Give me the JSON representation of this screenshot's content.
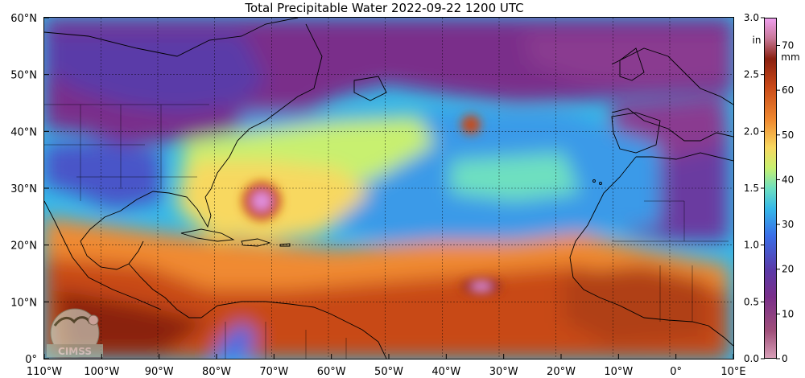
{
  "title": "Total Precipitable Water  2022-09-22 1200 UTC",
  "map": {
    "lon_ticks": [
      "110°W",
      "100°W",
      "90°W",
      "80°W",
      "70°W",
      "60°W",
      "50°W",
      "40°W",
      "30°W",
      "20°W",
      "10°W",
      "0°",
      "10°E"
    ],
    "lat_ticks": [
      "60°N",
      "50°N",
      "40°N",
      "30°N",
      "20°N",
      "10°N",
      "0°"
    ],
    "lon_range": [
      -110,
      10
    ],
    "lat_range": [
      0,
      60
    ],
    "gridlines": true,
    "logo_text": "CIMSS"
  },
  "colorbar": {
    "unit_in": "in",
    "unit_mm": "mm",
    "in_ticks": [
      "3.0",
      "2.5",
      "2.0",
      "1.5",
      "1.0",
      "0.5",
      "0.0"
    ],
    "in_values": [
      3.0,
      2.5,
      2.0,
      1.5,
      1.0,
      0.5,
      0.0
    ],
    "mm_ticks": [
      "70",
      "60",
      "50",
      "40",
      "30",
      "20",
      "10",
      "0"
    ],
    "mm_values": [
      70,
      60,
      50,
      40,
      30,
      20,
      10,
      0
    ],
    "max_mm": 76.2,
    "colors": [
      "#d8a0b8",
      "#a0507a",
      "#7a2f8a",
      "#5a3aa8",
      "#3a6ee8",
      "#35b8e8",
      "#6ee0c0",
      "#c8f070",
      "#f8d860",
      "#f08a30",
      "#c84818",
      "#8a2010",
      "#c87898",
      "#f0a0f0"
    ]
  }
}
